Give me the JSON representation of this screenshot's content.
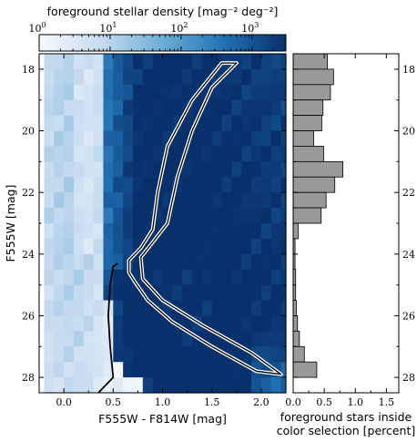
{
  "chart_data": [
    {
      "type": "heatmap",
      "name": "cmd-density",
      "colorbar": {
        "label": "foreground stellar density [mag⁻² deg⁻²]",
        "scale": "log",
        "range": [
          1,
          3000
        ],
        "ticks": [
          {
            "value": 1,
            "base": "10",
            "exp": "0"
          },
          {
            "value": 10,
            "base": "10",
            "exp": "1"
          },
          {
            "value": 100,
            "base": "10",
            "exp": "2"
          },
          {
            "value": 1000,
            "base": "10",
            "exp": "3"
          }
        ],
        "colors": [
          "#f7fbff",
          "#c6dbef",
          "#6baed6",
          "#2171b5",
          "#08306b"
        ]
      },
      "xlabel": "F555W - F814W [mag]",
      "ylabel": "F555W [mag]",
      "xlim": [
        -0.25,
        2.25
      ],
      "ylim": [
        28.5,
        17.5
      ],
      "xticks": [
        {
          "value": 0.0,
          "label": "0.0"
        },
        {
          "value": 0.5,
          "label": "0.5"
        },
        {
          "value": 1.0,
          "label": "1.0"
        },
        {
          "value": 1.5,
          "label": "1.5"
        },
        {
          "value": 2.0,
          "label": "2.0"
        }
      ],
      "yticks": [
        {
          "value": 18,
          "label": "18"
        },
        {
          "value": 20,
          "label": "20"
        },
        {
          "value": 22,
          "label": "22"
        },
        {
          "value": 24,
          "label": "24"
        },
        {
          "value": 26,
          "label": "26"
        },
        {
          "value": 28,
          "label": "28"
        }
      ],
      "cell_size": {
        "dx": 0.1,
        "dy": 0.5
      },
      "color_selection_polygon": {
        "left": [
          [
            1.6,
            17.8
          ],
          [
            1.3,
            19.0
          ],
          [
            1.05,
            20.5
          ],
          [
            0.95,
            22.0
          ],
          [
            0.9,
            23.2
          ],
          [
            0.78,
            23.8
          ],
          [
            0.66,
            24.2
          ],
          [
            0.66,
            24.6
          ]
        ],
        "right": [
          [
            1.75,
            17.8
          ],
          [
            1.5,
            18.6
          ],
          [
            1.3,
            20.0
          ],
          [
            1.15,
            21.5
          ],
          [
            1.05,
            23.0
          ],
          [
            0.88,
            23.7
          ],
          [
            0.78,
            24.1
          ],
          [
            0.8,
            24.8
          ],
          [
            1.0,
            25.5
          ],
          [
            1.4,
            26.3
          ],
          [
            1.9,
            27.2
          ],
          [
            2.2,
            27.9
          ]
        ],
        "bottom": [
          [
            2.2,
            27.9
          ],
          [
            1.95,
            27.8
          ],
          [
            1.5,
            27.0
          ],
          [
            1.1,
            26.2
          ],
          [
            0.85,
            25.5
          ],
          [
            0.72,
            24.9
          ],
          [
            0.66,
            24.6
          ]
        ]
      },
      "boundary_curve": [
        [
          0.55,
          24.3
        ],
        [
          0.5,
          24.4
        ],
        [
          0.47,
          25.0
        ],
        [
          0.45,
          26.0
        ],
        [
          0.47,
          27.0
        ],
        [
          0.5,
          28.0
        ],
        [
          0.35,
          28.5
        ]
      ]
    },
    {
      "type": "bar",
      "name": "foreground-histogram",
      "orientation": "horizontal",
      "xlabel": "foreground stars inside\ncolor selection [percent]",
      "xlim": [
        0.0,
        1.7
      ],
      "ylim": [
        28.5,
        17.5
      ],
      "xticks": [
        {
          "value": 0.0,
          "label": "0.0"
        },
        {
          "value": 0.5,
          "label": "0.5"
        },
        {
          "value": 1.0,
          "label": "1.0"
        },
        {
          "value": 1.5,
          "label": "1.5"
        }
      ],
      "yticks": [
        {
          "value": 18,
          "label": "18"
        },
        {
          "value": 20,
          "label": "20"
        },
        {
          "value": 22,
          "label": "22"
        },
        {
          "value": 24,
          "label": "24"
        },
        {
          "value": 26,
          "label": "26"
        },
        {
          "value": 28,
          "label": "28"
        }
      ],
      "bin_width": 0.5,
      "bins": [
        17.75,
        18.25,
        18.75,
        19.25,
        19.75,
        20.25,
        20.75,
        21.25,
        21.75,
        22.25,
        22.75,
        23.25,
        23.75,
        24.25,
        24.75,
        25.25,
        25.75,
        26.25,
        26.75,
        27.25,
        27.75
      ],
      "values": [
        0.55,
        0.65,
        0.6,
        0.48,
        0.46,
        0.33,
        0.49,
        0.8,
        0.67,
        0.53,
        0.45,
        0.08,
        0.03,
        0.03,
        0.04,
        0.04,
        0.05,
        0.07,
        0.1,
        0.18,
        0.38
      ],
      "bar_color": "#999999"
    }
  ]
}
